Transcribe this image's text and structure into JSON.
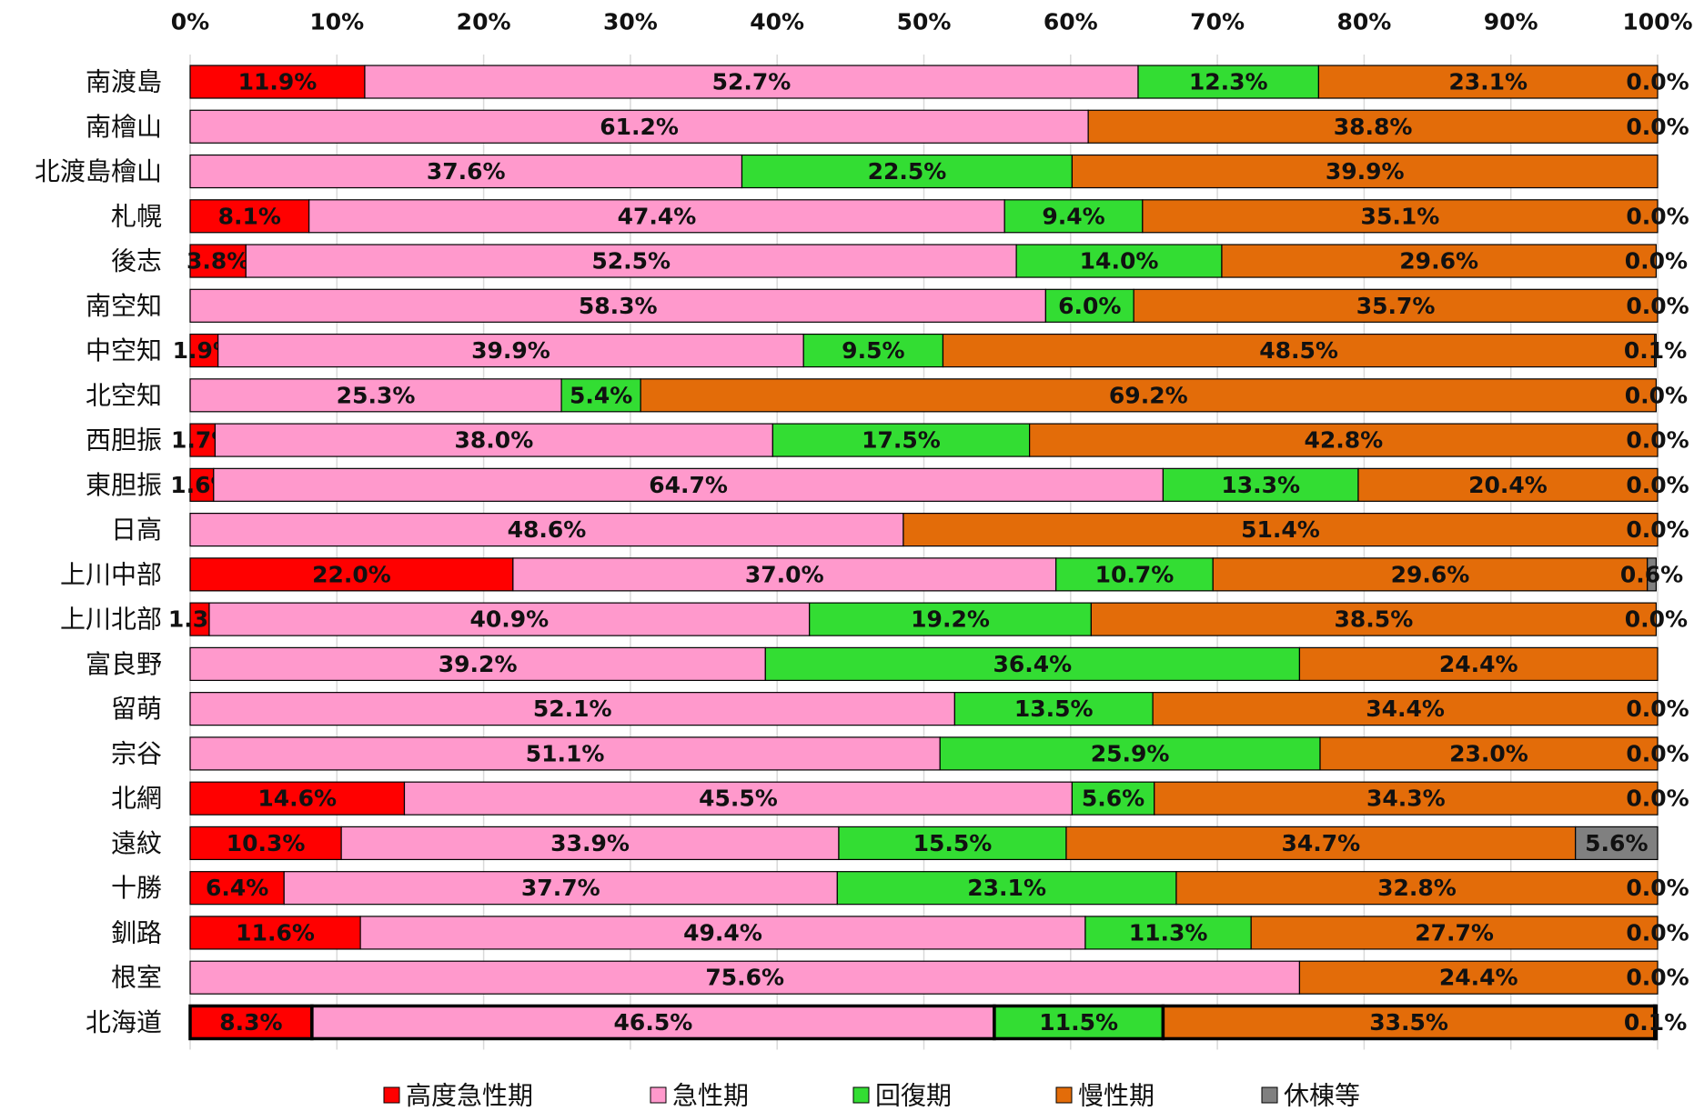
{
  "chart_data": {
    "type": "bar",
    "orientation": "horizontal",
    "stacked": true,
    "grid": true,
    "legend": "bottom",
    "categories": [
      "南渡島",
      "南檜山",
      "北渡島檜山",
      "札幌",
      "後志",
      "南空知",
      "中空知",
      "北空知",
      "西胆振",
      "東胆振",
      "日高",
      "上川中部",
      "上川北部",
      "富良野",
      "留萌",
      "宗谷",
      "北網",
      "遠紋",
      "十勝",
      "釧路",
      "根室",
      "北海道"
    ],
    "xlim": [
      0,
      100
    ],
    "xticks": [
      {
        "value": 0,
        "label": "0%"
      },
      {
        "value": 10,
        "label": "10%"
      },
      {
        "value": 20,
        "label": "20%"
      },
      {
        "value": 30,
        "label": "30%"
      },
      {
        "value": 40,
        "label": "40%"
      },
      {
        "value": 50,
        "label": "50%"
      },
      {
        "value": 60,
        "label": "60%"
      },
      {
        "value": 70,
        "label": "70%"
      },
      {
        "value": 80,
        "label": "80%"
      },
      {
        "value": 90,
        "label": "90%"
      },
      {
        "value": 100,
        "label": "100%"
      }
    ],
    "series": [
      {
        "name": "高度急性期",
        "color": "#ff0000",
        "values": [
          11.9,
          0,
          0,
          8.1,
          3.8,
          0,
          1.9,
          0,
          1.7,
          1.6,
          0,
          22.0,
          1.3,
          0,
          0,
          0,
          14.6,
          10.3,
          6.4,
          11.6,
          0,
          8.3
        ],
        "value_labels": [
          "11.9%",
          null,
          null,
          "8.1%",
          "3.8%",
          null,
          "1.9%",
          null,
          "1.7%",
          "1.6%",
          null,
          "22.0%",
          "1.3%",
          null,
          null,
          null,
          "14.6%",
          "10.3%",
          "6.4%",
          "11.6%",
          null,
          "8.3%"
        ]
      },
      {
        "name": "急性期",
        "color": "#ff99cc",
        "values": [
          52.7,
          61.2,
          37.6,
          47.4,
          52.5,
          58.3,
          39.9,
          25.3,
          38.0,
          64.7,
          48.6,
          37.0,
          40.9,
          39.2,
          52.1,
          51.1,
          45.5,
          33.9,
          37.7,
          49.4,
          75.6,
          46.5
        ],
        "value_labels": [
          "52.7%",
          "61.2%",
          "37.6%",
          "47.4%",
          "52.5%",
          "58.3%",
          "39.9%",
          "25.3%",
          "38.0%",
          "64.7%",
          "48.6%",
          "37.0%",
          "40.9%",
          "39.2%",
          "52.1%",
          "51.1%",
          "45.5%",
          "33.9%",
          "37.7%",
          "49.4%",
          "75.6%",
          "46.5%"
        ]
      },
      {
        "name": "回復期",
        "color": "#33dd33",
        "values": [
          12.3,
          0,
          22.5,
          9.4,
          14.0,
          6.0,
          9.5,
          5.4,
          17.5,
          13.3,
          0,
          10.7,
          19.2,
          36.4,
          13.5,
          25.9,
          5.6,
          15.5,
          23.1,
          11.3,
          0,
          11.5
        ],
        "value_labels": [
          "12.3%",
          null,
          "22.5%",
          "9.4%",
          "14.0%",
          "6.0%",
          "9.5%",
          "5.4%",
          "17.5%",
          "13.3%",
          null,
          "10.7%",
          "19.2%",
          "36.4%",
          "13.5%",
          "25.9%",
          "5.6%",
          "15.5%",
          "23.1%",
          "11.3%",
          null,
          "11.5%"
        ]
      },
      {
        "name": "慢性期",
        "color": "#e36c09",
        "values": [
          23.1,
          38.8,
          39.9,
          35.1,
          29.6,
          35.7,
          48.5,
          69.2,
          42.8,
          20.4,
          51.4,
          29.6,
          38.5,
          24.4,
          34.4,
          23.0,
          34.3,
          34.7,
          32.8,
          27.7,
          24.4,
          33.5
        ],
        "value_labels": [
          "23.1%",
          "38.8%",
          "39.9%",
          "35.1%",
          "29.6%",
          "35.7%",
          "48.5%",
          "69.2%",
          "42.8%",
          "20.4%",
          "51.4%",
          "29.6%",
          "38.5%",
          "24.4%",
          "34.4%",
          "23.0%",
          "34.3%",
          "34.7%",
          "32.8%",
          "27.7%",
          "24.4%",
          "33.5%"
        ]
      },
      {
        "name": "休棟等",
        "color": "#808080",
        "values": [
          0.0,
          0.0,
          0,
          0.0,
          0.0,
          0.0,
          0.1,
          0.0,
          0.0,
          0.0,
          0.0,
          0.6,
          0.0,
          0,
          0.0,
          0.0,
          0.0,
          5.6,
          0.0,
          0.0,
          0.0,
          0.1
        ],
        "value_labels": [
          "0.0%",
          "0.0%",
          null,
          "0.0%",
          "0.0%",
          "0.0%",
          "0.1%",
          "0.0%",
          "0.0%",
          "0.0%",
          "0.0%",
          "0.6%",
          "0.0%",
          null,
          "0.0%",
          "0.0%",
          "0.0%",
          "5.6%",
          "0.0%",
          "0.0%",
          "0.0%",
          "0.1%"
        ]
      }
    ]
  }
}
